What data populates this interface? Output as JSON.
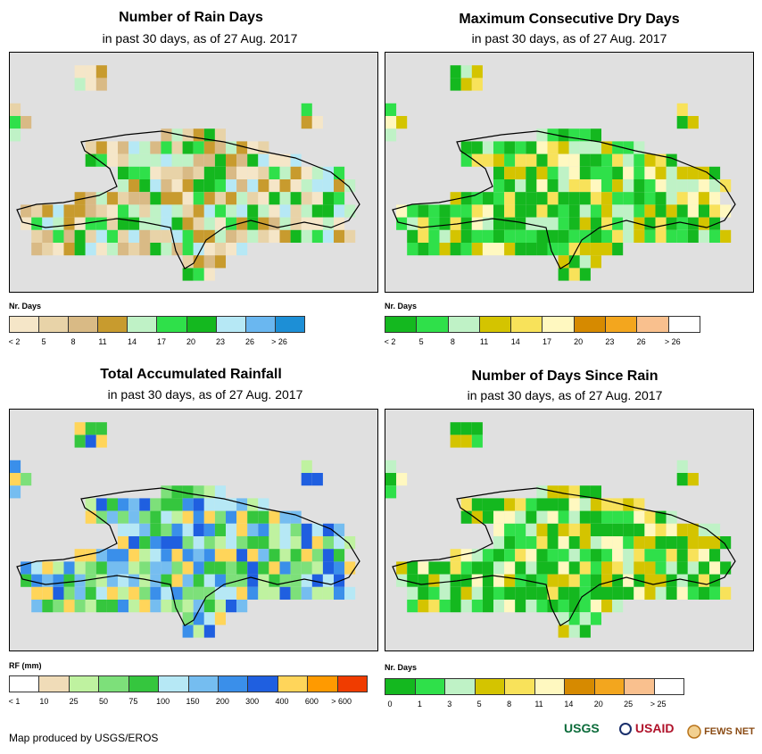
{
  "panels": [
    {
      "title": "Number of Rain Days",
      "subtitle": "in past 30 days, as of 27 Aug. 2017",
      "legend_label": "Nr. Days",
      "legend_colors": [
        "#f5e6c8",
        "#e8d3a8",
        "#d9ba85",
        "#c89b2e",
        "#bff2c6",
        "#2fe04a",
        "#14b81f",
        "#b6e8f5",
        "#6ab7f0",
        "#1d8fd6"
      ],
      "ticks": [
        "< 2",
        "5",
        "8",
        "11",
        "14",
        "17",
        "20",
        "23",
        "26",
        "> 26"
      ]
    },
    {
      "title": "Maximum Consecutive Dry Days",
      "subtitle": "in past 30 days, as of 27 Aug. 2017",
      "legend_label": "Nr. Days",
      "legend_colors": [
        "#14b81f",
        "#2fe04a",
        "#bff2c6",
        "#d4c400",
        "#f8e25a",
        "#fff8c0",
        "#d68a00",
        "#f3a61e",
        "#f9c08e",
        "#ffffff"
      ],
      "ticks": [
        "< 2",
        "5",
        "8",
        "11",
        "14",
        "17",
        "20",
        "23",
        "26",
        "> 26"
      ]
    },
    {
      "title": "Total Accumulated Rainfall",
      "subtitle": "in past 30 days, as of 27 Aug. 2017",
      "legend_label": "RF (mm)",
      "legend_colors": [
        "#ffffff",
        "#f0dcb8",
        "#bff2a0",
        "#7de07a",
        "#35c63e",
        "#b6e8f5",
        "#75bdf0",
        "#3a8fea",
        "#1f5fe0",
        "#ffd55a",
        "#ff9a00",
        "#f03c00"
      ],
      "ticks": [
        "< 1",
        "10",
        "25",
        "50",
        "75",
        "100",
        "150",
        "200",
        "300",
        "400",
        "600",
        "> 600"
      ]
    },
    {
      "title": "Number of Days Since Rain",
      "subtitle": "in past 30 days, as of 27 Aug. 2017",
      "legend_label": "Nr. Days",
      "legend_colors": [
        "#14b81f",
        "#2fe04a",
        "#bff2c6",
        "#d4c400",
        "#f8e25a",
        "#fff8c0",
        "#d68a00",
        "#f3a61e",
        "#f9c08e",
        "#ffffff"
      ],
      "ticks": [
        "0",
        "1",
        "3",
        "5",
        "8",
        "11",
        "14",
        "20",
        "25",
        "> 25"
      ]
    }
  ],
  "footer": "Map produced by USGS/EROS",
  "logos": {
    "usgs": "USGS",
    "usaid": "USAID",
    "fews": "FEWS NET"
  }
}
